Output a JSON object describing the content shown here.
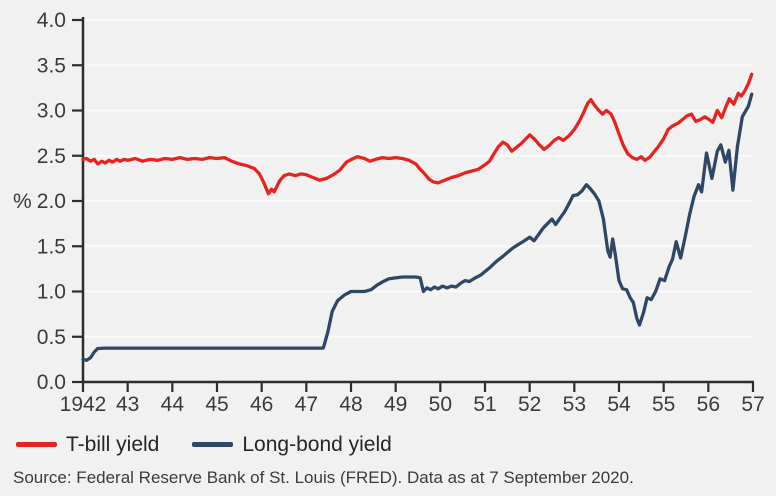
{
  "chart_data": {
    "type": "line",
    "ylabel": "%",
    "xlim": [
      1942,
      1957
    ],
    "ylim": [
      0.0,
      4.0
    ],
    "grid": "horizontal",
    "legend_position": "bottom-left",
    "x_ticks": [
      {
        "v": 1942,
        "label": "1942"
      },
      {
        "v": 1943,
        "label": "43"
      },
      {
        "v": 1944,
        "label": "44"
      },
      {
        "v": 1945,
        "label": "45"
      },
      {
        "v": 1946,
        "label": "46"
      },
      {
        "v": 1947,
        "label": "47"
      },
      {
        "v": 1948,
        "label": "48"
      },
      {
        "v": 1949,
        "label": "49"
      },
      {
        "v": 1950,
        "label": "50"
      },
      {
        "v": 1951,
        "label": "51"
      },
      {
        "v": 1952,
        "label": "52"
      },
      {
        "v": 1953,
        "label": "53"
      },
      {
        "v": 1954,
        "label": "54"
      },
      {
        "v": 1955,
        "label": "55"
      },
      {
        "v": 1956,
        "label": "56"
      },
      {
        "v": 1957,
        "label": "57"
      }
    ],
    "y_ticks": [
      {
        "v": 0.0,
        "label": "0.0"
      },
      {
        "v": 0.5,
        "label": "0.5"
      },
      {
        "v": 1.0,
        "label": "1.0"
      },
      {
        "v": 1.5,
        "label": "1.5"
      },
      {
        "v": 2.0,
        "label": "2.0"
      },
      {
        "v": 2.5,
        "label": "2.5"
      },
      {
        "v": 3.0,
        "label": "3.0"
      },
      {
        "v": 3.5,
        "label": "3.5"
      },
      {
        "v": 4.0,
        "label": "4.0"
      }
    ],
    "series": [
      {
        "name": "T-bill yield",
        "color": "#e7231d",
        "points": [
          [
            1942.0,
            2.46
          ],
          [
            1942.08,
            2.47
          ],
          [
            1942.17,
            2.44
          ],
          [
            1942.25,
            2.46
          ],
          [
            1942.33,
            2.41
          ],
          [
            1942.42,
            2.44
          ],
          [
            1942.5,
            2.42
          ],
          [
            1942.58,
            2.45
          ],
          [
            1942.67,
            2.43
          ],
          [
            1942.75,
            2.46
          ],
          [
            1942.83,
            2.44
          ],
          [
            1942.92,
            2.46
          ],
          [
            1943.0,
            2.45
          ],
          [
            1943.17,
            2.47
          ],
          [
            1943.33,
            2.44
          ],
          [
            1943.5,
            2.46
          ],
          [
            1943.67,
            2.45
          ],
          [
            1943.83,
            2.47
          ],
          [
            1944.0,
            2.46
          ],
          [
            1944.17,
            2.48
          ],
          [
            1944.33,
            2.46
          ],
          [
            1944.5,
            2.47
          ],
          [
            1944.67,
            2.46
          ],
          [
            1944.83,
            2.48
          ],
          [
            1945.0,
            2.47
          ],
          [
            1945.17,
            2.48
          ],
          [
            1945.33,
            2.44
          ],
          [
            1945.5,
            2.41
          ],
          [
            1945.67,
            2.39
          ],
          [
            1945.83,
            2.36
          ],
          [
            1945.95,
            2.3
          ],
          [
            1946.05,
            2.2
          ],
          [
            1946.15,
            2.08
          ],
          [
            1946.22,
            2.13
          ],
          [
            1946.28,
            2.1
          ],
          [
            1946.4,
            2.22
          ],
          [
            1946.5,
            2.28
          ],
          [
            1946.62,
            2.3
          ],
          [
            1946.75,
            2.28
          ],
          [
            1946.88,
            2.3
          ],
          [
            1947.0,
            2.29
          ],
          [
            1947.15,
            2.26
          ],
          [
            1947.3,
            2.23
          ],
          [
            1947.45,
            2.25
          ],
          [
            1947.6,
            2.29
          ],
          [
            1947.75,
            2.34
          ],
          [
            1947.9,
            2.43
          ],
          [
            1948.05,
            2.47
          ],
          [
            1948.15,
            2.49
          ],
          [
            1948.3,
            2.47
          ],
          [
            1948.42,
            2.44
          ],
          [
            1948.55,
            2.46
          ],
          [
            1948.7,
            2.48
          ],
          [
            1948.85,
            2.47
          ],
          [
            1949.0,
            2.48
          ],
          [
            1949.15,
            2.47
          ],
          [
            1949.3,
            2.45
          ],
          [
            1949.45,
            2.41
          ],
          [
            1949.55,
            2.35
          ],
          [
            1949.65,
            2.3
          ],
          [
            1949.75,
            2.24
          ],
          [
            1949.85,
            2.21
          ],
          [
            1949.95,
            2.2
          ],
          [
            1950.1,
            2.23
          ],
          [
            1950.25,
            2.26
          ],
          [
            1950.4,
            2.28
          ],
          [
            1950.55,
            2.31
          ],
          [
            1950.7,
            2.33
          ],
          [
            1950.85,
            2.35
          ],
          [
            1951.0,
            2.4
          ],
          [
            1951.1,
            2.44
          ],
          [
            1951.2,
            2.52
          ],
          [
            1951.3,
            2.6
          ],
          [
            1951.4,
            2.65
          ],
          [
            1951.5,
            2.62
          ],
          [
            1951.6,
            2.55
          ],
          [
            1951.7,
            2.59
          ],
          [
            1951.8,
            2.63
          ],
          [
            1951.9,
            2.68
          ],
          [
            1952.0,
            2.73
          ],
          [
            1952.1,
            2.69
          ],
          [
            1952.2,
            2.63
          ],
          [
            1952.32,
            2.57
          ],
          [
            1952.45,
            2.62
          ],
          [
            1952.55,
            2.67
          ],
          [
            1952.65,
            2.7
          ],
          [
            1952.75,
            2.67
          ],
          [
            1952.88,
            2.72
          ],
          [
            1953.0,
            2.79
          ],
          [
            1953.1,
            2.87
          ],
          [
            1953.2,
            2.97
          ],
          [
            1953.3,
            3.08
          ],
          [
            1953.37,
            3.12
          ],
          [
            1953.45,
            3.06
          ],
          [
            1953.55,
            3.0
          ],
          [
            1953.63,
            2.96
          ],
          [
            1953.72,
            3.0
          ],
          [
            1953.82,
            2.96
          ],
          [
            1953.9,
            2.88
          ],
          [
            1954.0,
            2.74
          ],
          [
            1954.1,
            2.61
          ],
          [
            1954.2,
            2.52
          ],
          [
            1954.3,
            2.48
          ],
          [
            1954.4,
            2.46
          ],
          [
            1954.5,
            2.49
          ],
          [
            1954.58,
            2.45
          ],
          [
            1954.68,
            2.48
          ],
          [
            1954.78,
            2.54
          ],
          [
            1954.88,
            2.6
          ],
          [
            1955.0,
            2.69
          ],
          [
            1955.1,
            2.79
          ],
          [
            1955.2,
            2.83
          ],
          [
            1955.32,
            2.86
          ],
          [
            1955.42,
            2.9
          ],
          [
            1955.52,
            2.94
          ],
          [
            1955.62,
            2.96
          ],
          [
            1955.72,
            2.88
          ],
          [
            1955.82,
            2.9
          ],
          [
            1955.92,
            2.93
          ],
          [
            1956.02,
            2.9
          ],
          [
            1956.1,
            2.87
          ],
          [
            1956.2,
            3.0
          ],
          [
            1956.3,
            2.92
          ],
          [
            1956.4,
            3.05
          ],
          [
            1956.47,
            3.13
          ],
          [
            1956.57,
            3.07
          ],
          [
            1956.67,
            3.19
          ],
          [
            1956.74,
            3.16
          ],
          [
            1956.82,
            3.22
          ],
          [
            1956.9,
            3.3
          ],
          [
            1956.97,
            3.4
          ]
        ]
      },
      {
        "name": "Long-bond yield",
        "color": "#2f4764",
        "points": [
          [
            1942.0,
            0.25
          ],
          [
            1942.08,
            0.24
          ],
          [
            1942.17,
            0.27
          ],
          [
            1942.25,
            0.33
          ],
          [
            1942.33,
            0.37
          ],
          [
            1942.5,
            0.375
          ],
          [
            1943.0,
            0.375
          ],
          [
            1943.5,
            0.375
          ],
          [
            1944.0,
            0.375
          ],
          [
            1944.5,
            0.375
          ],
          [
            1945.0,
            0.375
          ],
          [
            1945.5,
            0.375
          ],
          [
            1946.0,
            0.375
          ],
          [
            1946.5,
            0.375
          ],
          [
            1947.0,
            0.375
          ],
          [
            1947.38,
            0.375
          ],
          [
            1947.48,
            0.55
          ],
          [
            1947.58,
            0.78
          ],
          [
            1947.7,
            0.9
          ],
          [
            1947.85,
            0.96
          ],
          [
            1948.0,
            1.0
          ],
          [
            1948.15,
            1.0
          ],
          [
            1948.3,
            1.0
          ],
          [
            1948.45,
            1.02
          ],
          [
            1948.58,
            1.07
          ],
          [
            1948.72,
            1.11
          ],
          [
            1948.85,
            1.14
          ],
          [
            1949.0,
            1.15
          ],
          [
            1949.15,
            1.16
          ],
          [
            1949.3,
            1.16
          ],
          [
            1949.45,
            1.16
          ],
          [
            1949.55,
            1.15
          ],
          [
            1949.62,
            1.0
          ],
          [
            1949.7,
            1.04
          ],
          [
            1949.78,
            1.02
          ],
          [
            1949.87,
            1.05
          ],
          [
            1949.95,
            1.03
          ],
          [
            1950.05,
            1.06
          ],
          [
            1950.15,
            1.04
          ],
          [
            1950.25,
            1.06
          ],
          [
            1950.35,
            1.05
          ],
          [
            1950.45,
            1.09
          ],
          [
            1950.55,
            1.12
          ],
          [
            1950.65,
            1.11
          ],
          [
            1950.78,
            1.15
          ],
          [
            1950.9,
            1.18
          ],
          [
            1951.0,
            1.22
          ],
          [
            1951.12,
            1.27
          ],
          [
            1951.25,
            1.33
          ],
          [
            1951.38,
            1.38
          ],
          [
            1951.5,
            1.43
          ],
          [
            1951.62,
            1.48
          ],
          [
            1951.75,
            1.52
          ],
          [
            1951.88,
            1.56
          ],
          [
            1952.0,
            1.6
          ],
          [
            1952.1,
            1.56
          ],
          [
            1952.2,
            1.63
          ],
          [
            1952.3,
            1.7
          ],
          [
            1952.42,
            1.76
          ],
          [
            1952.5,
            1.8
          ],
          [
            1952.58,
            1.74
          ],
          [
            1952.68,
            1.81
          ],
          [
            1952.78,
            1.88
          ],
          [
            1952.88,
            1.97
          ],
          [
            1952.97,
            2.06
          ],
          [
            1953.07,
            2.07
          ],
          [
            1953.17,
            2.11
          ],
          [
            1953.27,
            2.18
          ],
          [
            1953.35,
            2.14
          ],
          [
            1953.45,
            2.08
          ],
          [
            1953.55,
            2.0
          ],
          [
            1953.65,
            1.8
          ],
          [
            1953.75,
            1.45
          ],
          [
            1953.8,
            1.38
          ],
          [
            1953.86,
            1.58
          ],
          [
            1953.92,
            1.4
          ],
          [
            1954.0,
            1.12
          ],
          [
            1954.08,
            1.03
          ],
          [
            1954.17,
            1.02
          ],
          [
            1954.25,
            0.93
          ],
          [
            1954.32,
            0.88
          ],
          [
            1954.4,
            0.7
          ],
          [
            1954.46,
            0.63
          ],
          [
            1954.55,
            0.77
          ],
          [
            1954.63,
            0.93
          ],
          [
            1954.72,
            0.91
          ],
          [
            1954.82,
            1.0
          ],
          [
            1954.92,
            1.14
          ],
          [
            1955.02,
            1.12
          ],
          [
            1955.12,
            1.27
          ],
          [
            1955.2,
            1.36
          ],
          [
            1955.28,
            1.55
          ],
          [
            1955.38,
            1.37
          ],
          [
            1955.48,
            1.6
          ],
          [
            1955.58,
            1.85
          ],
          [
            1955.68,
            2.05
          ],
          [
            1955.78,
            2.18
          ],
          [
            1955.85,
            2.1
          ],
          [
            1955.96,
            2.53
          ],
          [
            1956.08,
            2.25
          ],
          [
            1956.2,
            2.55
          ],
          [
            1956.28,
            2.62
          ],
          [
            1956.38,
            2.43
          ],
          [
            1956.46,
            2.56
          ],
          [
            1956.55,
            2.12
          ],
          [
            1956.65,
            2.6
          ],
          [
            1956.76,
            2.93
          ],
          [
            1956.84,
            3.0
          ],
          [
            1956.9,
            3.05
          ],
          [
            1956.97,
            3.18
          ]
        ]
      }
    ]
  },
  "source_note": "Source: Federal Reserve Bank of St. Louis (FRED). Data as at 7 September 2020.",
  "colors": {
    "background": "#f1f1f2",
    "gridline": "#fafafa",
    "axis": "#2d2d2d",
    "tick_text": "#3b3b3b",
    "legend_text": "#262626",
    "source_text": "#3b3b3b"
  }
}
